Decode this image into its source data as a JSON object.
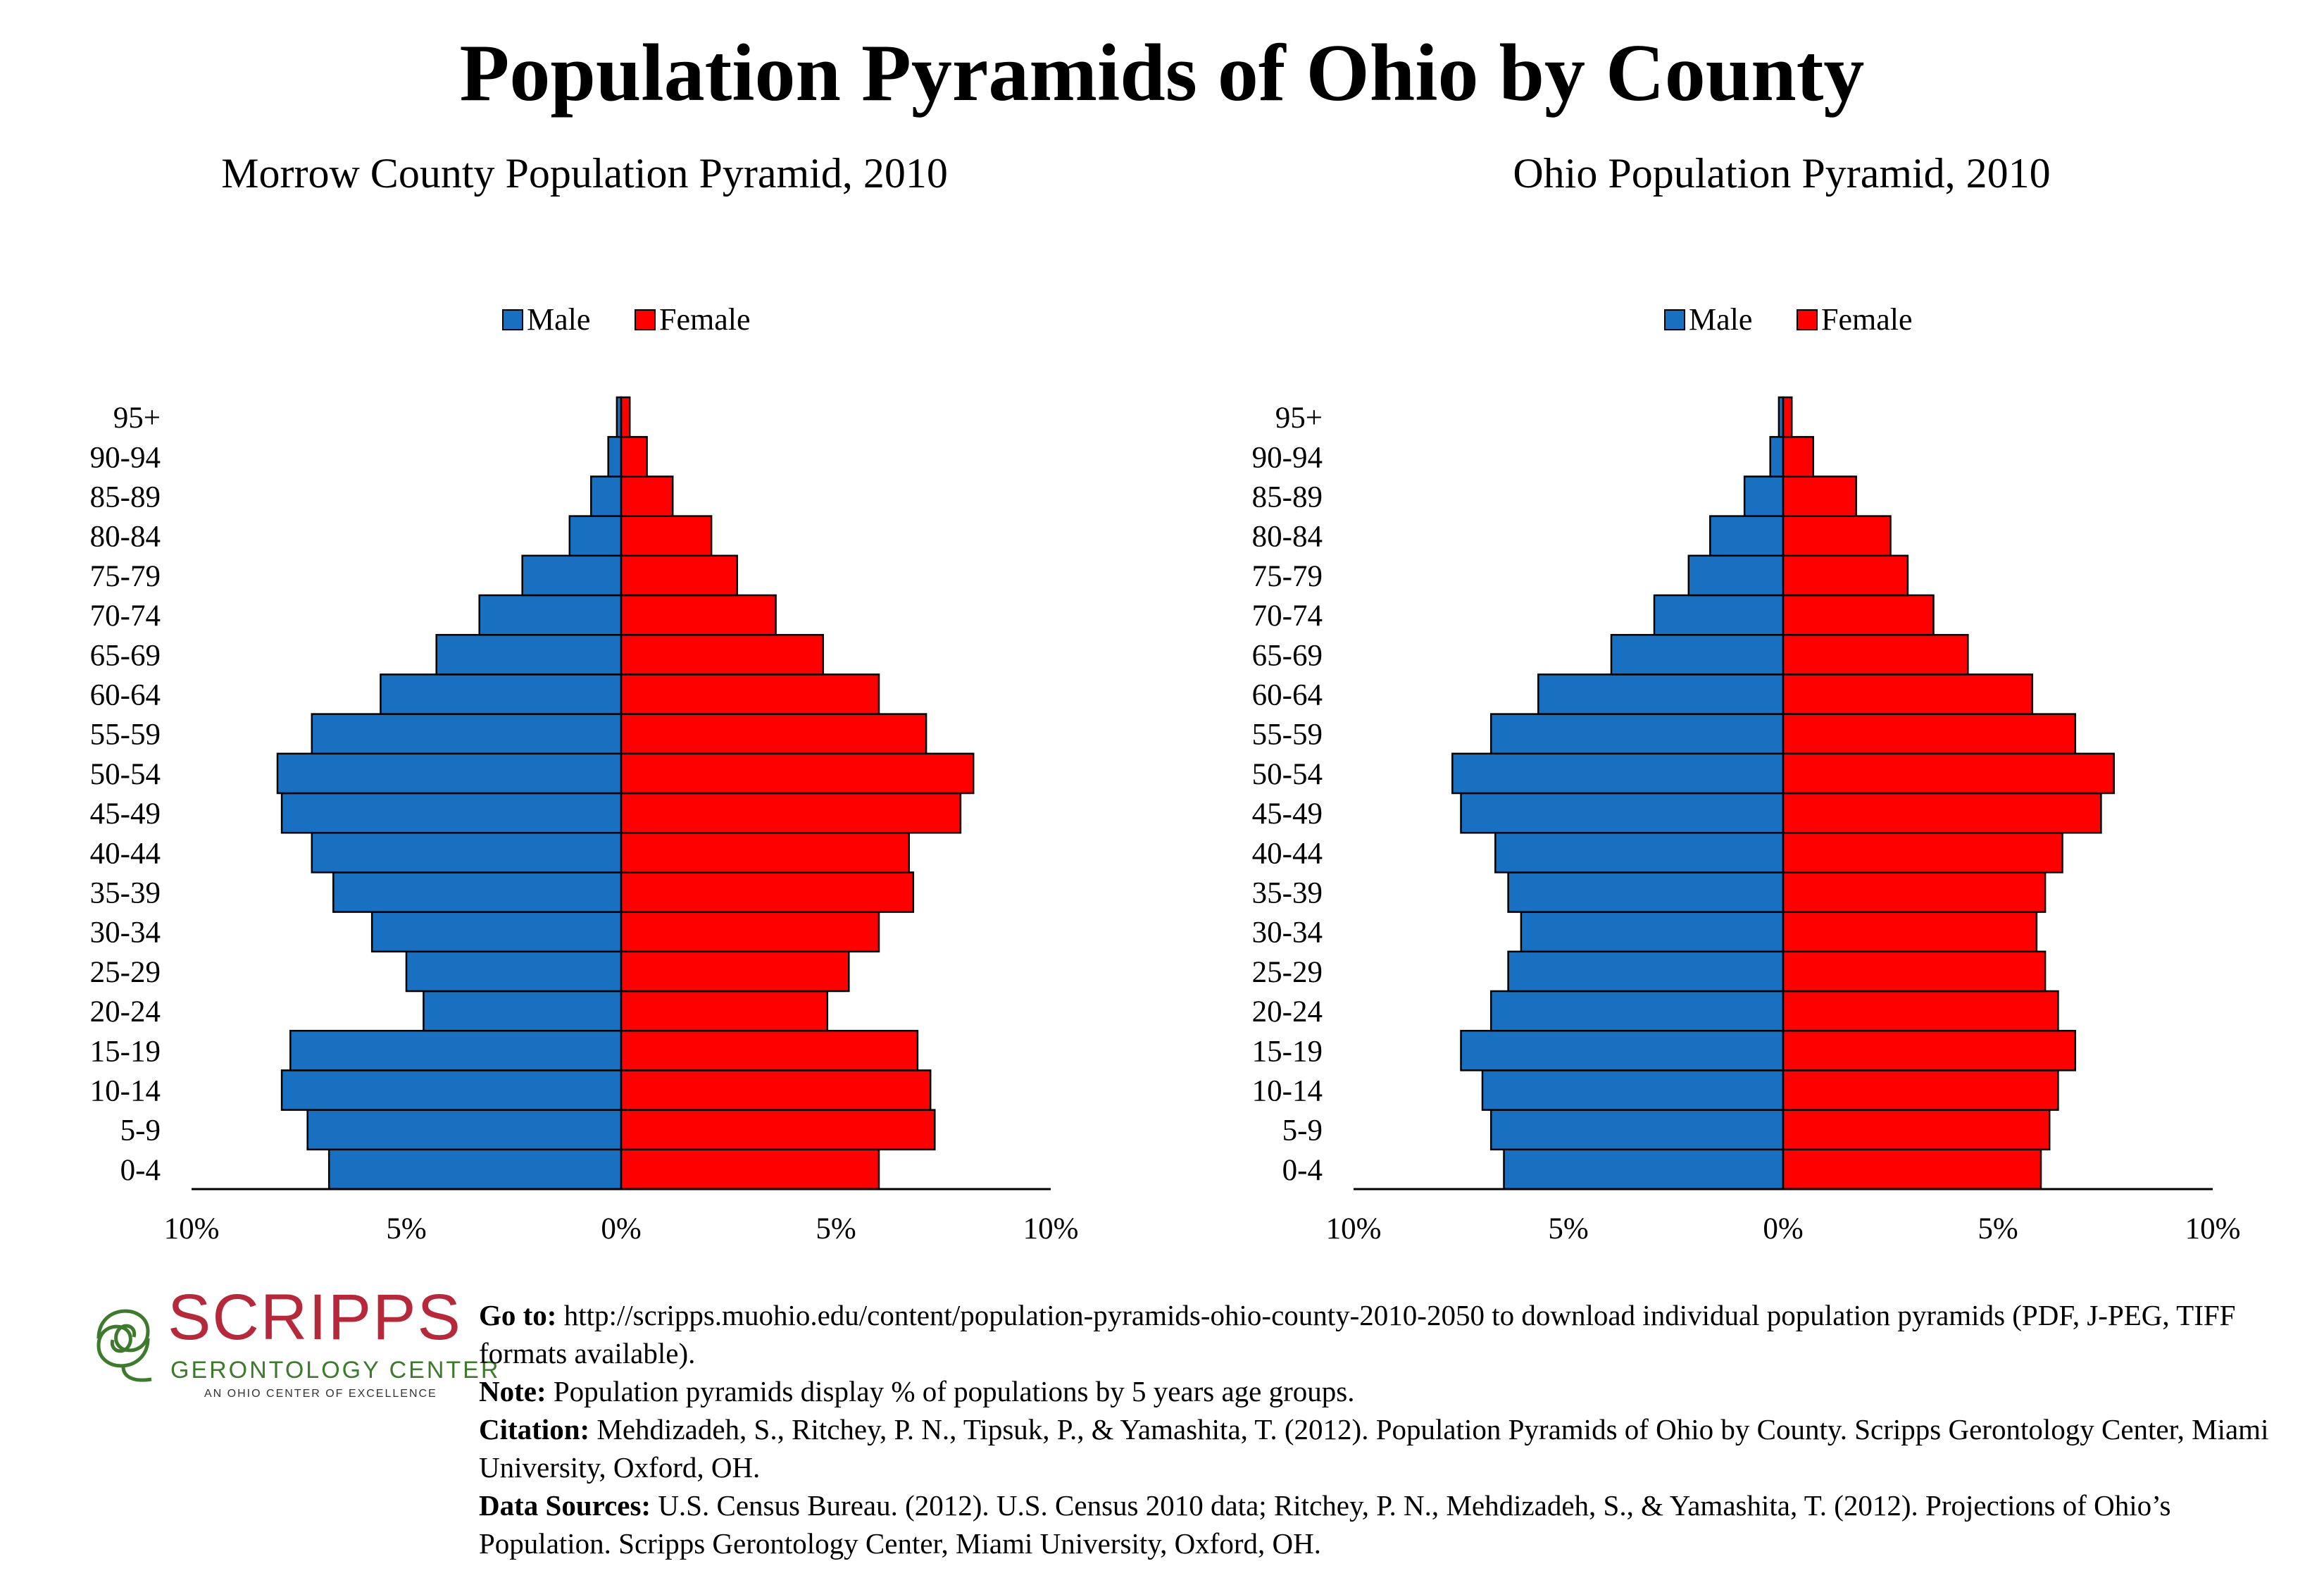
{
  "page": {
    "title": "Population Pyramids of Ohio by County"
  },
  "colors": {
    "male": "#1a70c0",
    "female": "#fe0000",
    "logo_red": "#b5293a",
    "logo_green": "#3d7a2e"
  },
  "chart_data": [
    {
      "type": "bar",
      "orientation": "horizontal",
      "layout": "population-pyramid",
      "title": "Morrow County Population Pyramid, 2010",
      "legend_position": "top-center",
      "categories": [
        "0-4",
        "5-9",
        "10-14",
        "15-19",
        "20-24",
        "25-29",
        "30-34",
        "35-39",
        "40-44",
        "45-49",
        "50-54",
        "55-59",
        "60-64",
        "65-69",
        "70-74",
        "75-79",
        "80-84",
        "85-89",
        "90-94",
        "95+"
      ],
      "series": [
        {
          "name": "Male",
          "values": [
            6.8,
            7.3,
            7.9,
            7.7,
            4.6,
            5.0,
            5.8,
            6.7,
            7.2,
            7.9,
            8.0,
            7.2,
            5.6,
            4.3,
            3.3,
            2.3,
            1.2,
            0.7,
            0.3,
            0.1
          ]
        },
        {
          "name": "Female",
          "values": [
            6.0,
            7.3,
            7.2,
            6.9,
            4.8,
            5.3,
            6.0,
            6.8,
            6.7,
            7.9,
            8.2,
            7.1,
            6.0,
            4.7,
            3.6,
            2.7,
            2.1,
            1.2,
            0.6,
            0.2
          ]
        }
      ],
      "xlim": [
        -10,
        10
      ],
      "x_ticks": [
        "10%",
        "5%",
        "0%",
        "5%",
        "10%"
      ],
      "grid": false
    },
    {
      "type": "bar",
      "orientation": "horizontal",
      "layout": "population-pyramid",
      "title": "Ohio Population Pyramid, 2010",
      "legend_position": "top-center",
      "categories": [
        "0-4",
        "5-9",
        "10-14",
        "15-19",
        "20-24",
        "25-29",
        "30-34",
        "35-39",
        "40-44",
        "45-49",
        "50-54",
        "55-59",
        "60-64",
        "65-69",
        "70-74",
        "75-79",
        "80-84",
        "85-89",
        "90-94",
        "95+"
      ],
      "series": [
        {
          "name": "Male",
          "values": [
            6.5,
            6.8,
            7.0,
            7.5,
            6.8,
            6.4,
            6.1,
            6.4,
            6.7,
            7.5,
            7.7,
            6.8,
            5.7,
            4.0,
            3.0,
            2.2,
            1.7,
            0.9,
            0.3,
            0.1
          ]
        },
        {
          "name": "Female",
          "values": [
            6.0,
            6.2,
            6.4,
            6.8,
            6.4,
            6.1,
            5.9,
            6.1,
            6.5,
            7.4,
            7.7,
            6.8,
            5.8,
            4.3,
            3.5,
            2.9,
            2.5,
            1.7,
            0.7,
            0.2
          ]
        }
      ],
      "xlim": [
        -10,
        10
      ],
      "x_ticks": [
        "10%",
        "5%",
        "0%",
        "5%",
        "10%"
      ],
      "grid": false
    }
  ],
  "logo": {
    "word": "SCRIPPS",
    "subtitle": "GERONTOLOGY CENTER",
    "tagline": "AN OHIO CENTER OF EXCELLENCE"
  },
  "footer": {
    "goto_label": "Go to:",
    "goto_text": "http://scripps.muohio.edu/content/population-pyramids-ohio-county-2010-2050 to download individual population pyramids (PDF, J-PEG, TIFF formats available).",
    "note_label": "Note:",
    "note_text": "Population pyramids display % of populations by 5 years age groups.",
    "citation_label": "Citation:",
    "citation_text": "Mehdizadeh, S., Ritchey, P. N., Tipsuk, P., & Yamashita, T. (2012). Population Pyramids of Ohio by County. Scripps Gerontology Center, Miami University, Oxford, OH.",
    "sources_label": "Data Sources:",
    "sources_text": "U.S. Census Bureau. (2012). U.S. Census 2010 data; Ritchey, P. N., Mehdizadeh, S., & Yamashita, T. (2012). Projections of Ohio’s Population. Scripps Gerontology Center, Miami University, Oxford, OH."
  }
}
